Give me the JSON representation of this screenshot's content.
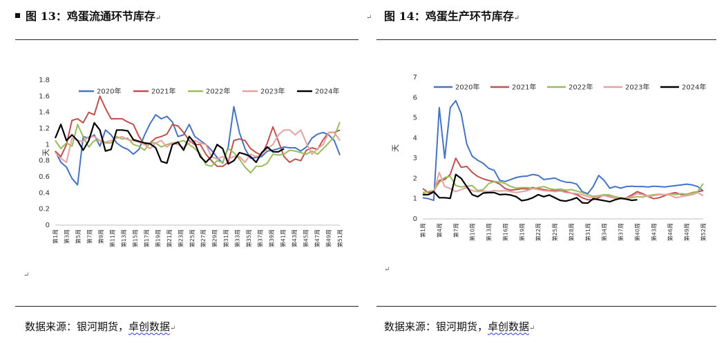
{
  "left_panel": {
    "title": "图 13：鸡蛋流通环节库存",
    "source_prefix": "数据来源：银河期货，",
    "source_link": "卓创数据",
    "para_mark": "↵"
  },
  "right_panel": {
    "title": "图 14：鸡蛋生产环节库存",
    "source_prefix": "数据来源：银河期货，",
    "source_link": "卓创数据",
    "para_mark": "↵"
  },
  "colors": {
    "2020年": "#4472c4",
    "2021年": "#c0504d",
    "2022年": "#9bbb59",
    "2023年": "#e6a0a0",
    "2024年": "#000000"
  },
  "chart_data": [
    {
      "type": "line",
      "title": "",
      "ylabel": "天",
      "ylim": [
        0,
        1.8
      ],
      "yticks": [
        "0",
        "0.2",
        "0.4",
        "0.6",
        "0.8",
        "1",
        "1.2",
        "1.4",
        "1.6",
        "1.8"
      ],
      "grid": false,
      "legend_position": "top",
      "x_tick_labels": [
        "第1周",
        "第3周",
        "第5周",
        "第7周",
        "第9周",
        "第11周",
        "第13周",
        "第15周",
        "第17周",
        "第19周",
        "第21周",
        "第23周",
        "第25周",
        "第27周",
        "第29周",
        "第31周",
        "第33周",
        "第35周",
        "第37周",
        "第39周",
        "第41周",
        "第43周",
        "第45周",
        "第47周",
        "第49周",
        "第51周"
      ],
      "series": [
        {
          "name": "2020年",
          "values": [
            0.92,
            0.78,
            0.72,
            0.58,
            0.5,
            1.1,
            1.08,
            1.12,
            0.98,
            1.18,
            1.12,
            1.02,
            0.97,
            0.94,
            0.88,
            0.94,
            1.12,
            1.26,
            1.37,
            1.32,
            1.35,
            1.28,
            1.1,
            1.12,
            1.25,
            1.1,
            1.05,
            1.0,
            0.93,
            0.84,
            0.77,
            0.97,
            1.47,
            1.15,
            0.95,
            0.83,
            0.84,
            0.85,
            0.92,
            0.93,
            0.95,
            0.97,
            0.96,
            0.96,
            0.92,
            0.97,
            1.08,
            1.13,
            1.15,
            1.12,
            1.05,
            0.87
          ]
        },
        {
          "name": "2021年",
          "values": [
            0.92,
            0.85,
            1.0,
            1.3,
            1.32,
            1.27,
            1.4,
            1.37,
            1.6,
            1.45,
            1.32,
            1.32,
            1.32,
            1.28,
            1.25,
            1.1,
            1.0,
            1.02,
            1.08,
            1.1,
            1.13,
            1.25,
            1.23,
            1.15,
            1.05,
            1.0,
            1.0,
            0.88,
            0.8,
            0.73,
            0.73,
            0.78,
            1.05,
            1.07,
            1.05,
            0.95,
            0.9,
            0.87,
            1.02,
            1.22,
            1.04,
            0.85,
            0.78,
            0.82,
            0.8,
            0.93,
            0.96,
            0.94,
            1.06,
            1.15,
            1.15,
            1.18
          ]
        },
        {
          "name": "2022年",
          "values": [
            1.05,
            0.95,
            1.02,
            0.98,
            1.25,
            1.1,
            0.97,
            1.05,
            1.05,
            1.02,
            1.02,
            1.1,
            1.07,
            1.08,
            1.0,
            0.98,
            0.93,
            1.02,
            1.02,
            0.97,
            1.0,
            1.02,
            1.03,
            1.05,
            1.0,
            0.95,
            0.88,
            0.75,
            0.73,
            0.8,
            0.78,
            0.95,
            0.9,
            0.82,
            0.72,
            0.65,
            0.73,
            0.73,
            0.77,
            0.88,
            0.87,
            0.88,
            0.93,
            0.92,
            0.9,
            0.88,
            0.92,
            0.88,
            0.95,
            1.02,
            1.1,
            1.28
          ]
        },
        {
          "name": "2023年",
          "values": [
            0.9,
            0.83,
            0.78,
            1.08,
            1.05,
            1.04,
            1.1,
            1.1,
            1.05,
            1.03,
            1.05,
            1.08,
            1.1,
            1.06,
            1.05,
            1.03,
            1.0,
            0.95,
            1.02,
            1.05,
            0.97,
            1.02,
            1.0,
            0.96,
            1.02,
            1.05,
            1.02,
            1.0,
            0.85,
            0.82,
            0.85,
            0.82,
            0.85,
            0.85,
            0.78,
            0.88,
            0.85,
            0.88,
            0.95,
            1.0,
            1.12,
            1.18,
            1.18,
            1.12,
            1.18,
            1.02,
            0.88,
            0.95,
            1.0,
            1.15,
            1.15,
            1.05
          ]
        },
        {
          "name": "2024年",
          "values": [
            1.08,
            1.25,
            1.05,
            1.12,
            1.05,
            0.93,
            1.05,
            1.27,
            1.18,
            0.92,
            0.94,
            1.18,
            1.18,
            1.17,
            1.06,
            1.04,
            1.02,
            1.01,
            0.96,
            0.79,
            0.77,
            1.0,
            1.03,
            0.93,
            1.1,
            1.02,
            0.85,
            0.78,
            0.85,
            1.0,
            0.95,
            0.76,
            0.8,
            0.9,
            0.88,
            0.85,
            0.78,
            0.9,
            0.97,
            0.91,
            0.91,
            0.95
          ]
        }
      ]
    },
    {
      "type": "line",
      "title": "",
      "ylabel": "天",
      "ylim": [
        0,
        7
      ],
      "yticks": [
        "0",
        "1",
        "2",
        "3",
        "4",
        "5",
        "6",
        "7"
      ],
      "grid": false,
      "legend_position": "top",
      "x_tick_labels": [
        "第1周",
        "第4周",
        "第7周",
        "第10周",
        "第13周",
        "第16周",
        "第19周",
        "第22周",
        "第25周",
        "第28周",
        "第31周",
        "第34周",
        "第37周",
        "第40周",
        "第43周",
        "第46周",
        "第49周",
        "第52周"
      ],
      "series": [
        {
          "name": "2020年",
          "values": [
            1.05,
            1.0,
            0.92,
            5.5,
            3.0,
            5.5,
            5.85,
            5.2,
            3.7,
            3.1,
            2.9,
            2.75,
            2.5,
            2.4,
            1.9,
            1.85,
            1.95,
            2.05,
            2.1,
            2.12,
            2.2,
            2.15,
            1.95,
            1.98,
            2.02,
            1.9,
            1.82,
            1.8,
            1.72,
            1.35,
            1.25,
            1.6,
            2.15,
            1.9,
            1.52,
            1.6,
            1.52,
            1.6,
            1.62,
            1.6,
            1.6,
            1.58,
            1.62,
            1.6,
            1.58,
            1.62,
            1.65,
            1.68,
            1.72,
            1.68,
            1.6,
            1.38
          ]
        },
        {
          "name": "2021年",
          "values": [
            1.5,
            1.3,
            1.35,
            1.9,
            1.95,
            2.2,
            3.0,
            2.55,
            2.6,
            2.3,
            2.1,
            1.98,
            1.9,
            1.85,
            1.72,
            1.5,
            1.42,
            1.45,
            1.5,
            1.48,
            1.55,
            1.5,
            1.45,
            1.4,
            1.42,
            1.4,
            1.35,
            1.28,
            1.2,
            1.05,
            0.95,
            0.95,
            1.05,
            1.2,
            1.1,
            1.02,
            1.0,
            1.05,
            1.18,
            1.35,
            1.25,
            1.1,
            1.0,
            1.05,
            1.15,
            1.25,
            1.3,
            1.2,
            1.22,
            1.3,
            1.35,
            1.4
          ]
        },
        {
          "name": "2022年",
          "values": [
            1.3,
            1.35,
            1.4,
            1.8,
            2.05,
            2.1,
            1.65,
            1.58,
            1.62,
            1.65,
            1.4,
            1.45,
            1.75,
            1.85,
            1.82,
            1.75,
            1.6,
            1.52,
            1.55,
            1.55,
            1.5,
            1.55,
            1.6,
            1.5,
            1.45,
            1.48,
            1.42,
            1.45,
            1.38,
            1.3,
            1.2,
            1.12,
            1.15,
            1.2,
            1.18,
            1.1,
            1.05,
            1.02,
            1.05,
            1.1,
            1.08,
            1.15,
            1.2,
            1.22,
            1.2,
            1.25,
            1.2,
            1.25,
            1.22,
            1.28,
            1.35,
            1.75
          ]
        },
        {
          "name": "2023年",
          "values": [
            1.25,
            1.2,
            1.3,
            2.3,
            1.6,
            1.5,
            1.35,
            1.45,
            1.55,
            1.4,
            1.35,
            1.38,
            1.35,
            1.4,
            1.38,
            1.4,
            1.35,
            1.3,
            1.35,
            1.4,
            1.5,
            1.45,
            1.4,
            1.38,
            1.35,
            1.38,
            1.3,
            1.28,
            1.25,
            1.2,
            1.1,
            1.05,
            1.12,
            1.15,
            1.08,
            1.02,
            1.0,
            1.05,
            1.1,
            1.25,
            1.2,
            1.1,
            1.15,
            1.2,
            1.2,
            1.18,
            1.05,
            1.1,
            1.15,
            1.2,
            1.3,
            1.15
          ]
        },
        {
          "name": "2024年",
          "values": [
            1.2,
            1.2,
            1.35,
            1.05,
            1.05,
            1.02,
            2.2,
            2.0,
            1.6,
            1.2,
            1.1,
            1.28,
            1.3,
            1.3,
            1.2,
            1.22,
            1.18,
            1.1,
            0.9,
            0.95,
            1.05,
            1.2,
            1.1,
            1.18,
            1.05,
            0.92,
            0.88,
            0.95,
            1.05,
            0.8,
            0.78,
            1.0,
            0.95,
            0.9,
            0.85,
            0.95,
            1.02,
            0.98,
            0.92,
            0.95
          ]
        }
      ]
    }
  ]
}
